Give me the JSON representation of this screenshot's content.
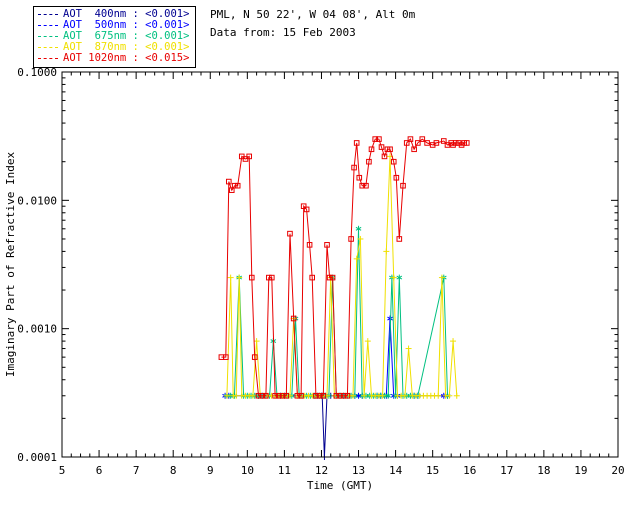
{
  "header": {
    "line1": "PML, N 50 22', W 04 08', Alt 0m",
    "line2": "Data from: 15 Feb 2003"
  },
  "legend": {
    "entries": [
      {
        "label": "AOT  400nm : <0.001>",
        "color": "#000090"
      },
      {
        "label": "AOT  500nm : <0.001>",
        "color": "#0000FF"
      },
      {
        "label": "AOT  675nm : <0.001>",
        "color": "#00C080"
      },
      {
        "label": "AOT  870nm : <0.001>",
        "color": "#F0E000"
      },
      {
        "label": "AOT 1020nm : <0.015>",
        "color": "#E80000"
      }
    ]
  },
  "chart_data": {
    "type": "line",
    "title": "",
    "xlabel": "Time (GMT)",
    "ylabel": "Imaginary Part of Refractive Index",
    "xlim": [
      5,
      20
    ],
    "ylim": [
      0.0001,
      0.1
    ],
    "yscale": "log",
    "grid": false,
    "legend_position": "top-left",
    "xticks": [
      5,
      6,
      7,
      8,
      9,
      10,
      11,
      12,
      13,
      14,
      15,
      16,
      17,
      18,
      19,
      20
    ],
    "yticks": [
      {
        "value": 0.0001,
        "label": "0.0001"
      },
      {
        "value": 0.001,
        "label": "0.0010"
      },
      {
        "value": 0.01,
        "label": "0.0100"
      },
      {
        "value": 0.1,
        "label": "0.1000"
      }
    ],
    "series": [
      {
        "name": "AOT 400nm",
        "color": "#000090",
        "marker": "plus",
        "points": [
          [
            11.85,
            0.0003
          ],
          [
            11.95,
            0.0003
          ],
          [
            12.02,
            0.0003
          ],
          [
            12.08,
            0.0001
          ],
          [
            12.15,
            0.0003
          ],
          [
            12.25,
            0.0003
          ]
        ]
      },
      {
        "name": "AOT 500nm",
        "color": "#0000FF",
        "marker": "asterisk",
        "points": [
          [
            9.4,
            0.0003
          ],
          [
            9.5,
            0.0003
          ],
          [
            10.3,
            0.0003
          ],
          [
            10.4,
            0.0003
          ],
          [
            10.9,
            0.0003
          ],
          [
            11.0,
            0.0003
          ],
          [
            11.8,
            0.0003
          ],
          [
            11.9,
            0.0003
          ],
          [
            12.0,
            0.0003
          ],
          [
            12.1,
            0.0003
          ],
          [
            12.5,
            0.0003
          ],
          [
            12.6,
            0.0003
          ],
          [
            12.9,
            0.0003
          ],
          [
            13.0,
            0.0003
          ],
          [
            13.1,
            0.0003
          ],
          [
            13.5,
            0.0003
          ],
          [
            13.6,
            0.0003
          ],
          [
            13.75,
            0.0003
          ],
          [
            13.85,
            0.0012
          ],
          [
            13.95,
            0.0003
          ],
          [
            14.05,
            0.0003
          ],
          [
            14.5,
            0.0003
          ],
          [
            14.6,
            0.0003
          ],
          [
            15.3,
            0.0003
          ],
          [
            15.4,
            0.0003
          ]
        ]
      },
      {
        "name": "AOT 675nm",
        "color": "#00C080",
        "marker": "asterisk",
        "points": [
          [
            9.45,
            0.0003
          ],
          [
            9.55,
            0.0003
          ],
          [
            9.65,
            0.0003
          ],
          [
            9.78,
            0.0025
          ],
          [
            9.9,
            0.0003
          ],
          [
            10.0,
            0.0003
          ],
          [
            10.1,
            0.0003
          ],
          [
            10.2,
            0.0003
          ],
          [
            10.3,
            0.0003
          ],
          [
            10.4,
            0.0003
          ],
          [
            10.5,
            0.0003
          ],
          [
            10.6,
            0.0003
          ],
          [
            10.7,
            0.0008
          ],
          [
            10.8,
            0.0003
          ],
          [
            10.9,
            0.0003
          ],
          [
            11.0,
            0.0003
          ],
          [
            11.1,
            0.0003
          ],
          [
            11.2,
            0.0003
          ],
          [
            11.3,
            0.0012
          ],
          [
            11.4,
            0.0003
          ],
          [
            11.5,
            0.0003
          ],
          [
            11.6,
            0.0003
          ],
          [
            11.7,
            0.0003
          ],
          [
            11.8,
            0.0003
          ],
          [
            11.9,
            0.0003
          ],
          [
            12.0,
            0.0003
          ],
          [
            12.1,
            0.0003
          ],
          [
            12.2,
            0.0003
          ],
          [
            12.3,
            0.0025
          ],
          [
            12.4,
            0.0003
          ],
          [
            12.5,
            0.0003
          ],
          [
            12.6,
            0.0003
          ],
          [
            12.7,
            0.0003
          ],
          [
            12.8,
            0.0003
          ],
          [
            12.9,
            0.0003
          ],
          [
            13.0,
            0.006
          ],
          [
            13.1,
            0.0003
          ],
          [
            13.2,
            0.0003
          ],
          [
            13.3,
            0.0003
          ],
          [
            13.4,
            0.0003
          ],
          [
            13.5,
            0.0003
          ],
          [
            13.6,
            0.0003
          ],
          [
            13.7,
            0.0003
          ],
          [
            13.8,
            0.0003
          ],
          [
            13.9,
            0.0025
          ],
          [
            14.0,
            0.0003
          ],
          [
            14.1,
            0.0025
          ],
          [
            14.2,
            0.0003
          ],
          [
            14.3,
            0.0003
          ],
          [
            14.4,
            0.0003
          ],
          [
            14.5,
            0.0003
          ],
          [
            14.6,
            0.0003
          ],
          [
            15.3,
            0.0025
          ],
          [
            15.4,
            0.0003
          ]
        ]
      },
      {
        "name": "AOT 870nm",
        "color": "#F0E000",
        "marker": "plus",
        "points": [
          [
            9.45,
            0.0003
          ],
          [
            9.55,
            0.0025
          ],
          [
            9.62,
            0.0003
          ],
          [
            9.7,
            0.0003
          ],
          [
            9.78,
            0.0025
          ],
          [
            9.85,
            0.0003
          ],
          [
            9.95,
            0.0003
          ],
          [
            10.05,
            0.0003
          ],
          [
            10.15,
            0.0003
          ],
          [
            10.25,
            0.0008
          ],
          [
            10.35,
            0.0003
          ],
          [
            10.45,
            0.0003
          ],
          [
            10.55,
            0.0003
          ],
          [
            10.65,
            0.0003
          ],
          [
            10.75,
            0.0003
          ],
          [
            10.85,
            0.0003
          ],
          [
            10.95,
            0.0003
          ],
          [
            11.05,
            0.0003
          ],
          [
            11.15,
            0.0003
          ],
          [
            11.25,
            0.0012
          ],
          [
            11.35,
            0.0003
          ],
          [
            11.45,
            0.0003
          ],
          [
            11.55,
            0.0003
          ],
          [
            11.65,
            0.0003
          ],
          [
            11.75,
            0.0003
          ],
          [
            11.85,
            0.0003
          ],
          [
            11.95,
            0.0003
          ],
          [
            12.05,
            0.0003
          ],
          [
            12.15,
            0.0003
          ],
          [
            12.25,
            0.0025
          ],
          [
            12.35,
            0.0003
          ],
          [
            12.45,
            0.0003
          ],
          [
            12.55,
            0.0003
          ],
          [
            12.65,
            0.0003
          ],
          [
            12.75,
            0.0003
          ],
          [
            12.85,
            0.0003
          ],
          [
            12.95,
            0.0035
          ],
          [
            13.05,
            0.005
          ],
          [
            13.15,
            0.0003
          ],
          [
            13.25,
            0.0008
          ],
          [
            13.35,
            0.0003
          ],
          [
            13.45,
            0.0003
          ],
          [
            13.55,
            0.0003
          ],
          [
            13.65,
            0.0003
          ],
          [
            13.75,
            0.004
          ],
          [
            13.85,
            0.022
          ],
          [
            13.95,
            0.0025
          ],
          [
            14.05,
            0.0003
          ],
          [
            14.15,
            0.0003
          ],
          [
            14.25,
            0.0003
          ],
          [
            14.35,
            0.0007
          ],
          [
            14.45,
            0.0003
          ],
          [
            14.55,
            0.0003
          ],
          [
            14.65,
            0.0003
          ],
          [
            14.75,
            0.0003
          ],
          [
            14.85,
            0.0003
          ],
          [
            14.95,
            0.0003
          ],
          [
            15.05,
            0.0003
          ],
          [
            15.15,
            0.0003
          ],
          [
            15.25,
            0.0025
          ],
          [
            15.35,
            0.0003
          ],
          [
            15.45,
            0.0003
          ],
          [
            15.55,
            0.0008
          ],
          [
            15.65,
            0.0003
          ]
        ]
      },
      {
        "name": "AOT 1020nm",
        "color": "#E80000",
        "marker": "square",
        "points": [
          [
            9.3,
            0.0006
          ],
          [
            9.42,
            0.0006
          ],
          [
            9.5,
            0.014
          ],
          [
            9.58,
            0.012
          ],
          [
            9.66,
            0.013
          ],
          [
            9.74,
            0.013
          ],
          [
            9.85,
            0.022
          ],
          [
            9.95,
            0.021
          ],
          [
            10.05,
            0.022
          ],
          [
            10.12,
            0.0025
          ],
          [
            10.2,
            0.0006
          ],
          [
            10.3,
            0.0003
          ],
          [
            10.4,
            0.0003
          ],
          [
            10.5,
            0.0003
          ],
          [
            10.58,
            0.0025
          ],
          [
            10.66,
            0.0025
          ],
          [
            10.75,
            0.0003
          ],
          [
            10.85,
            0.0003
          ],
          [
            10.95,
            0.0003
          ],
          [
            11.05,
            0.0003
          ],
          [
            11.15,
            0.0055
          ],
          [
            11.25,
            0.0012
          ],
          [
            11.35,
            0.0003
          ],
          [
            11.45,
            0.0003
          ],
          [
            11.52,
            0.009
          ],
          [
            11.6,
            0.0085
          ],
          [
            11.68,
            0.0045
          ],
          [
            11.75,
            0.0025
          ],
          [
            11.85,
            0.0003
          ],
          [
            11.95,
            0.0003
          ],
          [
            12.05,
            0.0003
          ],
          [
            12.15,
            0.0045
          ],
          [
            12.22,
            0.0025
          ],
          [
            12.3,
            0.0025
          ],
          [
            12.4,
            0.0003
          ],
          [
            12.5,
            0.0003
          ],
          [
            12.6,
            0.0003
          ],
          [
            12.7,
            0.0003
          ],
          [
            12.8,
            0.005
          ],
          [
            12.88,
            0.018
          ],
          [
            12.95,
            0.028
          ],
          [
            13.02,
            0.015
          ],
          [
            13.1,
            0.013
          ],
          [
            13.2,
            0.013
          ],
          [
            13.28,
            0.02
          ],
          [
            13.35,
            0.025
          ],
          [
            13.45,
            0.03
          ],
          [
            13.55,
            0.03
          ],
          [
            13.62,
            0.026
          ],
          [
            13.7,
            0.022
          ],
          [
            13.78,
            0.025
          ],
          [
            13.85,
            0.025
          ],
          [
            13.95,
            0.02
          ],
          [
            14.02,
            0.015
          ],
          [
            14.1,
            0.005
          ],
          [
            14.2,
            0.013
          ],
          [
            14.3,
            0.028
          ],
          [
            14.4,
            0.03
          ],
          [
            14.5,
            0.025
          ],
          [
            14.6,
            0.028
          ],
          [
            14.72,
            0.03
          ],
          [
            14.85,
            0.028
          ],
          [
            15.0,
            0.027
          ],
          [
            15.1,
            0.028
          ],
          [
            15.3,
            0.029
          ],
          [
            15.4,
            0.027
          ],
          [
            15.5,
            0.028
          ],
          [
            15.55,
            0.027
          ],
          [
            15.62,
            0.028
          ],
          [
            15.7,
            0.028
          ],
          [
            15.78,
            0.027
          ],
          [
            15.85,
            0.028
          ],
          [
            15.92,
            0.028
          ]
        ]
      }
    ]
  }
}
